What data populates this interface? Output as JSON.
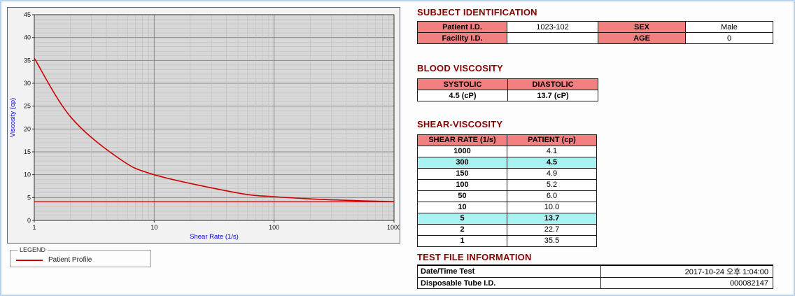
{
  "chart": {
    "ylabel": "Viscosity (cp)",
    "xlabel": "Shear Rate (1/s)",
    "legend_title": "LEGEND",
    "legend_item": "Patient Profile",
    "line_color": "#cc0000"
  },
  "chart_data": {
    "type": "line",
    "title": "",
    "xlabel": "Shear Rate (1/s)",
    "ylabel": "Viscosity (cp)",
    "xscale": "log",
    "xlim": [
      1,
      1000
    ],
    "ylim": [
      0,
      45
    ],
    "y_tick_step": 5,
    "x_ticks": [
      1,
      10,
      100,
      1000
    ],
    "grid": "on",
    "legend_position": "below-left",
    "x": [
      1,
      2,
      5,
      10,
      50,
      100,
      150,
      300,
      1000
    ],
    "series": [
      {
        "name": "Patient Profile",
        "color": "#cc0000",
        "values": [
          35.5,
          22.7,
          13.7,
          10.0,
          6.0,
          5.2,
          4.9,
          4.5,
          4.1
        ]
      }
    ],
    "reference_line_y": 4.1
  },
  "subject_identification": {
    "title": "SUBJECT IDENTIFICATION",
    "rows": [
      {
        "label1": "Patient I.D.",
        "value1": "1023-102",
        "label2": "SEX",
        "value2": "Male"
      },
      {
        "label1": "Facility I.D.",
        "value1": "",
        "label2": "AGE",
        "value2": "0"
      }
    ]
  },
  "blood_viscosity": {
    "title": "BLOOD VISCOSITY",
    "headers": [
      "SYSTOLIC",
      "DIASTOLIC"
    ],
    "values": [
      "4.5 (cP)",
      "13.7 (cP)"
    ]
  },
  "shear_viscosity": {
    "title": "SHEAR-VISCOSITY",
    "headers": [
      "SHEAR RATE (1/s)",
      "PATIENT (cp)"
    ],
    "rows": [
      {
        "rate": "1000",
        "value": "4.1",
        "highlight": false
      },
      {
        "rate": "300",
        "value": "4.5",
        "highlight": true
      },
      {
        "rate": "150",
        "value": "4.9",
        "highlight": false
      },
      {
        "rate": "100",
        "value": "5.2",
        "highlight": false
      },
      {
        "rate": "50",
        "value": "6.0",
        "highlight": false
      },
      {
        "rate": "10",
        "value": "10.0",
        "highlight": false
      },
      {
        "rate": "5",
        "value": "13.7",
        "highlight": true
      },
      {
        "rate": "2",
        "value": "22.7",
        "highlight": false
      },
      {
        "rate": "1",
        "value": "35.5",
        "highlight": false
      }
    ]
  },
  "test_file_information": {
    "title": "TEST FILE INFORMATION",
    "rows": [
      {
        "label": "Date/Time Test",
        "value": "2017-10-24  오후 1:04:00"
      },
      {
        "label": "Disposable Tube I.D.",
        "value": "000082147"
      }
    ]
  }
}
